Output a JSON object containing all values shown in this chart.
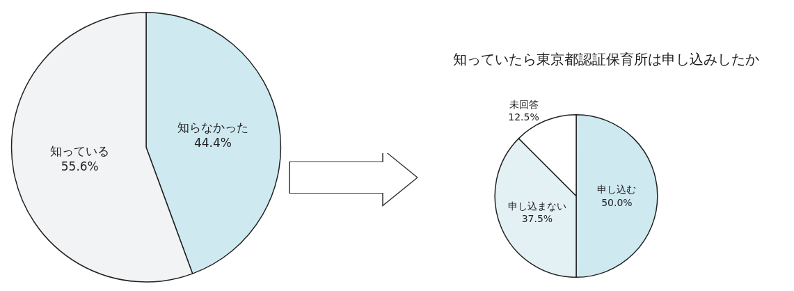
{
  "chart_data": [
    {
      "type": "pie",
      "categories": [
        "知らなかった",
        "知っている"
      ],
      "values": [
        44.4,
        55.6
      ],
      "value_labels": [
        "44.4%",
        "55.6%"
      ],
      "colors": [
        "#cfe9f1",
        "#f1f3f5"
      ],
      "legend": false
    },
    {
      "type": "pie",
      "title": "知っていたら東京都認証保育所は申し込みしたか",
      "categories": [
        "申し込む",
        "申し込まない",
        "未回答"
      ],
      "values": [
        50.0,
        37.5,
        12.5
      ],
      "value_labels": [
        "50.0%",
        "37.5%",
        "12.5%"
      ],
      "colors": [
        "#cfe9f1",
        "#e3f1f5",
        "#ffffff"
      ],
      "legend": false
    }
  ]
}
